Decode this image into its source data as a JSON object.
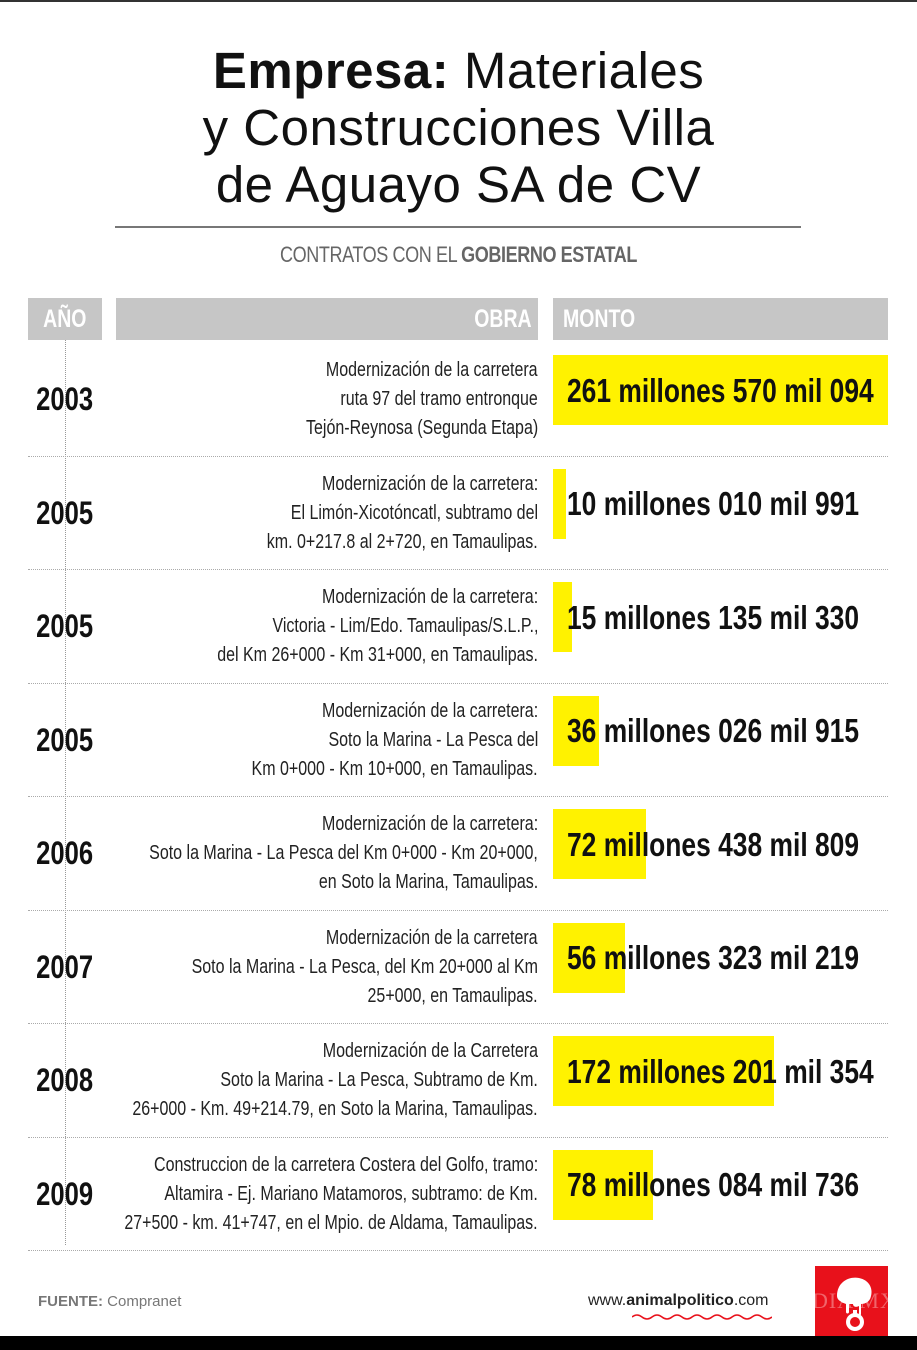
{
  "title": {
    "bold": "Empresa:",
    "line1_rest": " Materiales",
    "line2": "y Construcciones Villa",
    "line3": "de Aguayo SA de CV"
  },
  "subtitle": {
    "regular": "CONTRATOS CON EL ",
    "bold": "GOBIERNO ESTATAL"
  },
  "headers": {
    "year": "AÑO",
    "obra": "OBRA",
    "monto": "MONTO"
  },
  "colors": {
    "bar": "#fff200",
    "header_bg": "#c6c6c6",
    "logo": "#e8111b"
  },
  "rows": [
    {
      "year": "2003",
      "obra": [
        "Modernización de la carretera",
        "ruta 97 del tramo entronque",
        "Tejón-Reynosa (Segunda Etapa)"
      ],
      "amount": "261 millones 570 mil 094"
    },
    {
      "year": "2005",
      "obra": [
        "Modernización de la carretera:",
        "El Limón-Xicotóncatl, subtramo del",
        "km. 0+217.8 al 2+720, en Tamaulipas."
      ],
      "amount": "10 millones 010 mil 991"
    },
    {
      "year": "2005",
      "obra": [
        "Modernización de la carretera:",
        "Victoria - Lim/Edo. Tamaulipas/S.L.P.,",
        "del Km 26+000 - Km 31+000, en Tamaulipas."
      ],
      "amount": "15 millones 135 mil 330"
    },
    {
      "year": "2005",
      "obra": [
        "Modernización de la carretera:",
        "Soto la Marina - La Pesca del",
        "Km 0+000 - Km 10+000, en Tamaulipas."
      ],
      "amount": "36 millones 026 mil 915"
    },
    {
      "year": "2006",
      "obra": [
        "Modernización de la carretera:",
        "Soto la Marina - La Pesca del Km 0+000 - Km 20+000,",
        "en Soto la Marina, Tamaulipas."
      ],
      "amount": "72 millones 438 mil 809"
    },
    {
      "year": "2007",
      "obra": [
        "Modernización de la carretera",
        "Soto la Marina - La Pesca, del Km 20+000 al Km",
        "25+000, en Tamaulipas."
      ],
      "amount": "56 millones 323 mil 219"
    },
    {
      "year": "2008",
      "obra": [
        "Modernización de la Carretera",
        "Soto la Marina - La Pesca, Subtramo de Km.",
        "26+000 - Km. 49+214.79, en Soto la Marina, Tamaulipas."
      ],
      "amount": "172 millones 201 mil 354"
    },
    {
      "year": "2009",
      "obra": [
        "Construccion de la carretera Costera del Golfo, tramo:",
        "Altamira - Ej. Mariano Matamoros, subtramo: de Km.",
        "27+500 - km. 41+747, en el Mpio. de Aldama, Tamaulipas."
      ],
      "amount": "78 millones 084 mil 736"
    }
  ],
  "footer": {
    "source_label": "FUENTE:",
    "source_value": " Compranet",
    "url_prefix": "www.",
    "url_brand": "animalpolitico",
    "url_suffix": ".com",
    "watermark": "DIA MX"
  },
  "chart_data": {
    "type": "bar",
    "title": "Empresa: Materiales y Construcciones Villa de Aguayo SA de CV",
    "subtitle": "CONTRATOS CON EL GOBIERNO ESTATAL",
    "orientation": "horizontal",
    "xlabel": "MONTO",
    "ylabel": "AÑO",
    "categories": [
      "2003",
      "2005",
      "2005",
      "2005",
      "2006",
      "2007",
      "2008",
      "2009"
    ],
    "values": [
      261570094,
      10010991,
      15135330,
      36026915,
      72438809,
      56323219,
      172201354,
      78084736
    ],
    "labels": [
      "261 millones 570 mil 094",
      "10 millones 010 mil 991",
      "15 millones 135 mil 330",
      "36 millones 026 mil 915",
      "72 millones 438 mil 809",
      "56 millones 323 mil 219",
      "172 millones 201 mil 354",
      "78 millones 084 mil 736"
    ],
    "source": "Compranet",
    "grid": false,
    "legend": "none"
  }
}
